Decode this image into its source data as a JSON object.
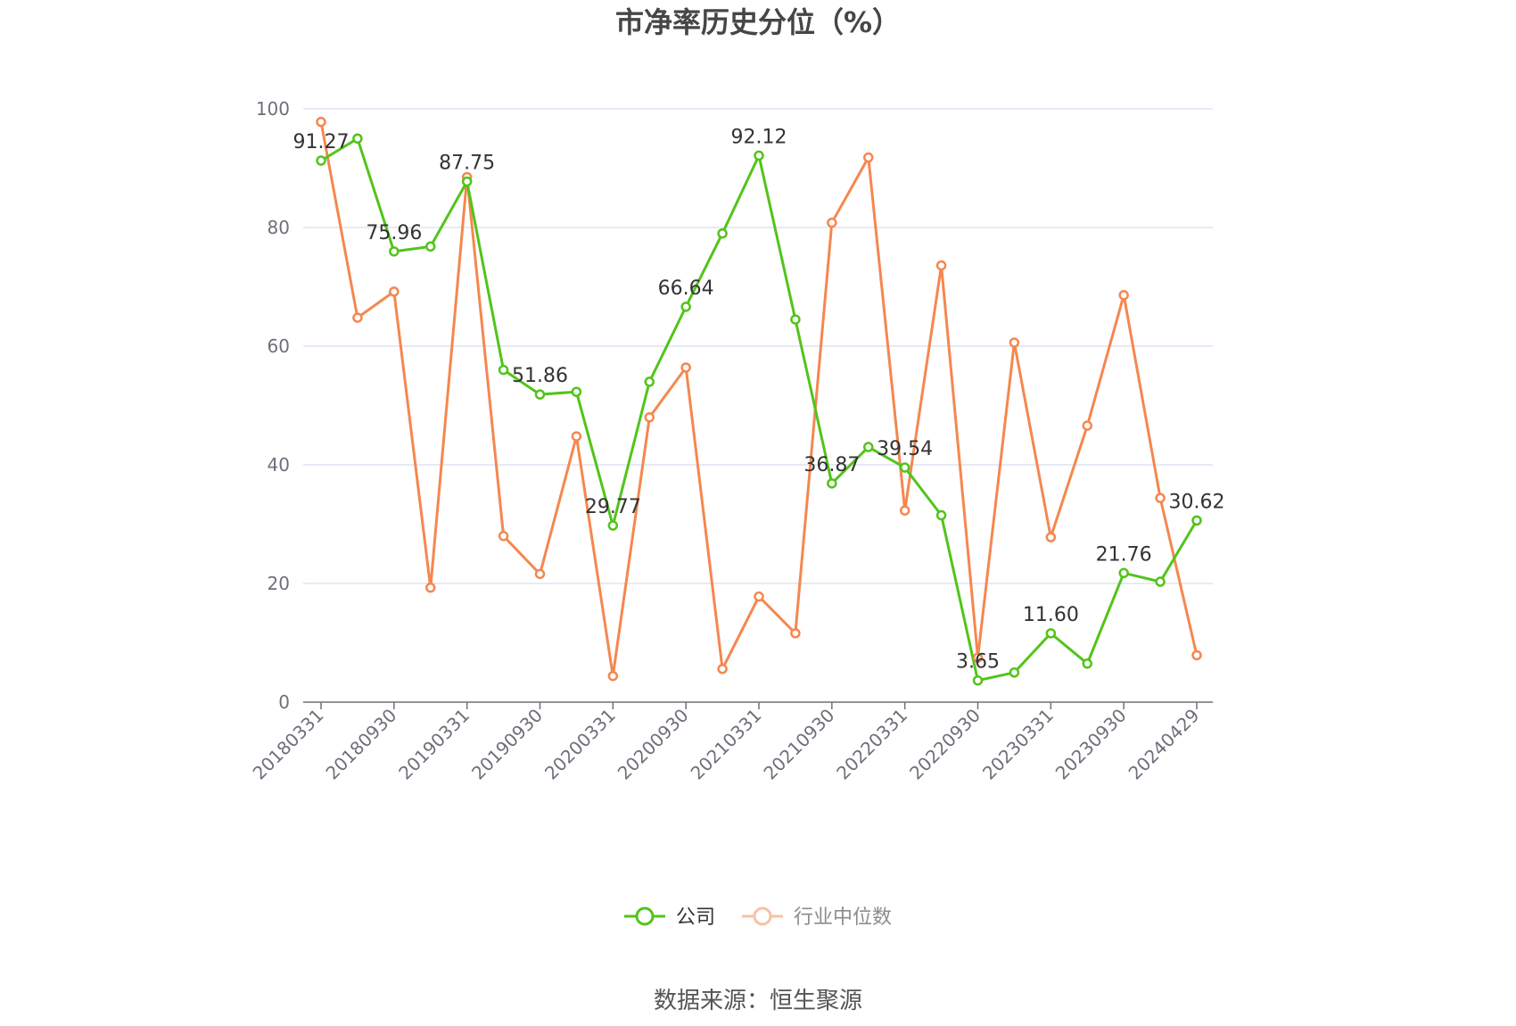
{
  "chart_data": {
    "type": "line",
    "title": "市净率历史分位（%）",
    "source": "数据来源：恒生聚源",
    "ylim": [
      0,
      100
    ],
    "yticks": [
      "0",
      "20",
      "40",
      "60",
      "80",
      "100"
    ],
    "grid": true,
    "legend_position": "bottom-center",
    "x": [
      "20180331",
      "20180630",
      "20180930",
      "20181231",
      "20190331",
      "20190630",
      "20190930",
      "20191231",
      "20200331",
      "20200630",
      "20200930",
      "20201231",
      "20210331",
      "20210630",
      "20210930",
      "20211231",
      "20220331",
      "20220630",
      "20220930",
      "20221231",
      "20230331",
      "20230630",
      "20230930",
      "20231231",
      "20240429"
    ],
    "xtick_labels": [
      "20180331",
      "",
      "20180930",
      "",
      "20190331",
      "",
      "20190930",
      "",
      "20200331",
      "",
      "20200930",
      "",
      "20210331",
      "",
      "20210930",
      "",
      "20220331",
      "",
      "20220930",
      "",
      "20230331",
      "",
      "20230930",
      "",
      "20240429"
    ],
    "series": [
      {
        "name": "公司",
        "color": "#52c41a",
        "values": [
          91.27,
          95.0,
          75.96,
          76.8,
          87.75,
          56.0,
          51.86,
          52.3,
          29.77,
          54.0,
          66.64,
          79.0,
          92.12,
          64.5,
          36.87,
          43.0,
          39.54,
          31.5,
          3.65,
          5.0,
          11.6,
          6.5,
          21.76,
          20.3,
          30.62
        ],
        "labels": [
          "91.27",
          "",
          "75.96",
          "",
          "87.75",
          "",
          "51.86",
          "",
          "29.77",
          "",
          "66.64",
          "",
          "92.12",
          "",
          "36.87",
          "",
          "39.54",
          "",
          "3.65",
          "",
          "11.60",
          "",
          "21.76",
          "",
          "30.62"
        ]
      },
      {
        "name": "行业中位数",
        "color": "#f5874f",
        "values": [
          97.8,
          64.8,
          69.2,
          19.3,
          88.5,
          28.0,
          21.6,
          44.8,
          4.4,
          48.0,
          56.4,
          5.6,
          17.8,
          11.6,
          80.8,
          91.8,
          32.3,
          73.6,
          7.5,
          60.6,
          27.8,
          46.6,
          68.6,
          34.4,
          7.9
        ]
      }
    ]
  }
}
